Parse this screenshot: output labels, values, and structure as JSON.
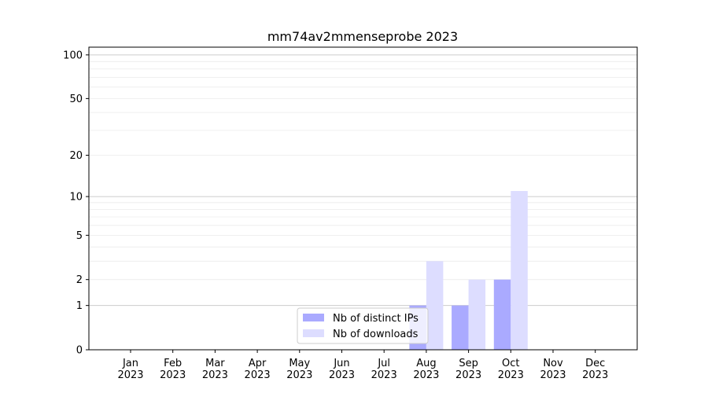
{
  "chart_data": {
    "type": "bar",
    "title": "mm74av2mmenseprobe 2023",
    "xlabel": "",
    "ylabel": "",
    "y_scale": "log(1+y)",
    "ylim": [
      0,
      113
    ],
    "yticks": [
      0,
      1,
      2,
      5,
      10,
      20,
      50,
      100
    ],
    "grid": true,
    "legend_position": "lower-center",
    "categories": [
      "Jan\n2023",
      "Feb\n2023",
      "Mar\n2023",
      "Apr\n2023",
      "May\n2023",
      "Jun\n2023",
      "Jul\n2023",
      "Aug\n2023",
      "Sep\n2023",
      "Oct\n2023",
      "Nov\n2023",
      "Dec\n2023"
    ],
    "series": [
      {
        "name": "Nb of distinct IPs",
        "color": "#aaaaff",
        "values": [
          0,
          0,
          0,
          0,
          0,
          0,
          0,
          1,
          1,
          2,
          0,
          0
        ]
      },
      {
        "name": "Nb of downloads",
        "color": "#ddddff",
        "values": [
          0,
          0,
          0,
          0,
          0,
          0,
          0,
          3,
          2,
          11,
          0,
          0
        ]
      }
    ]
  }
}
